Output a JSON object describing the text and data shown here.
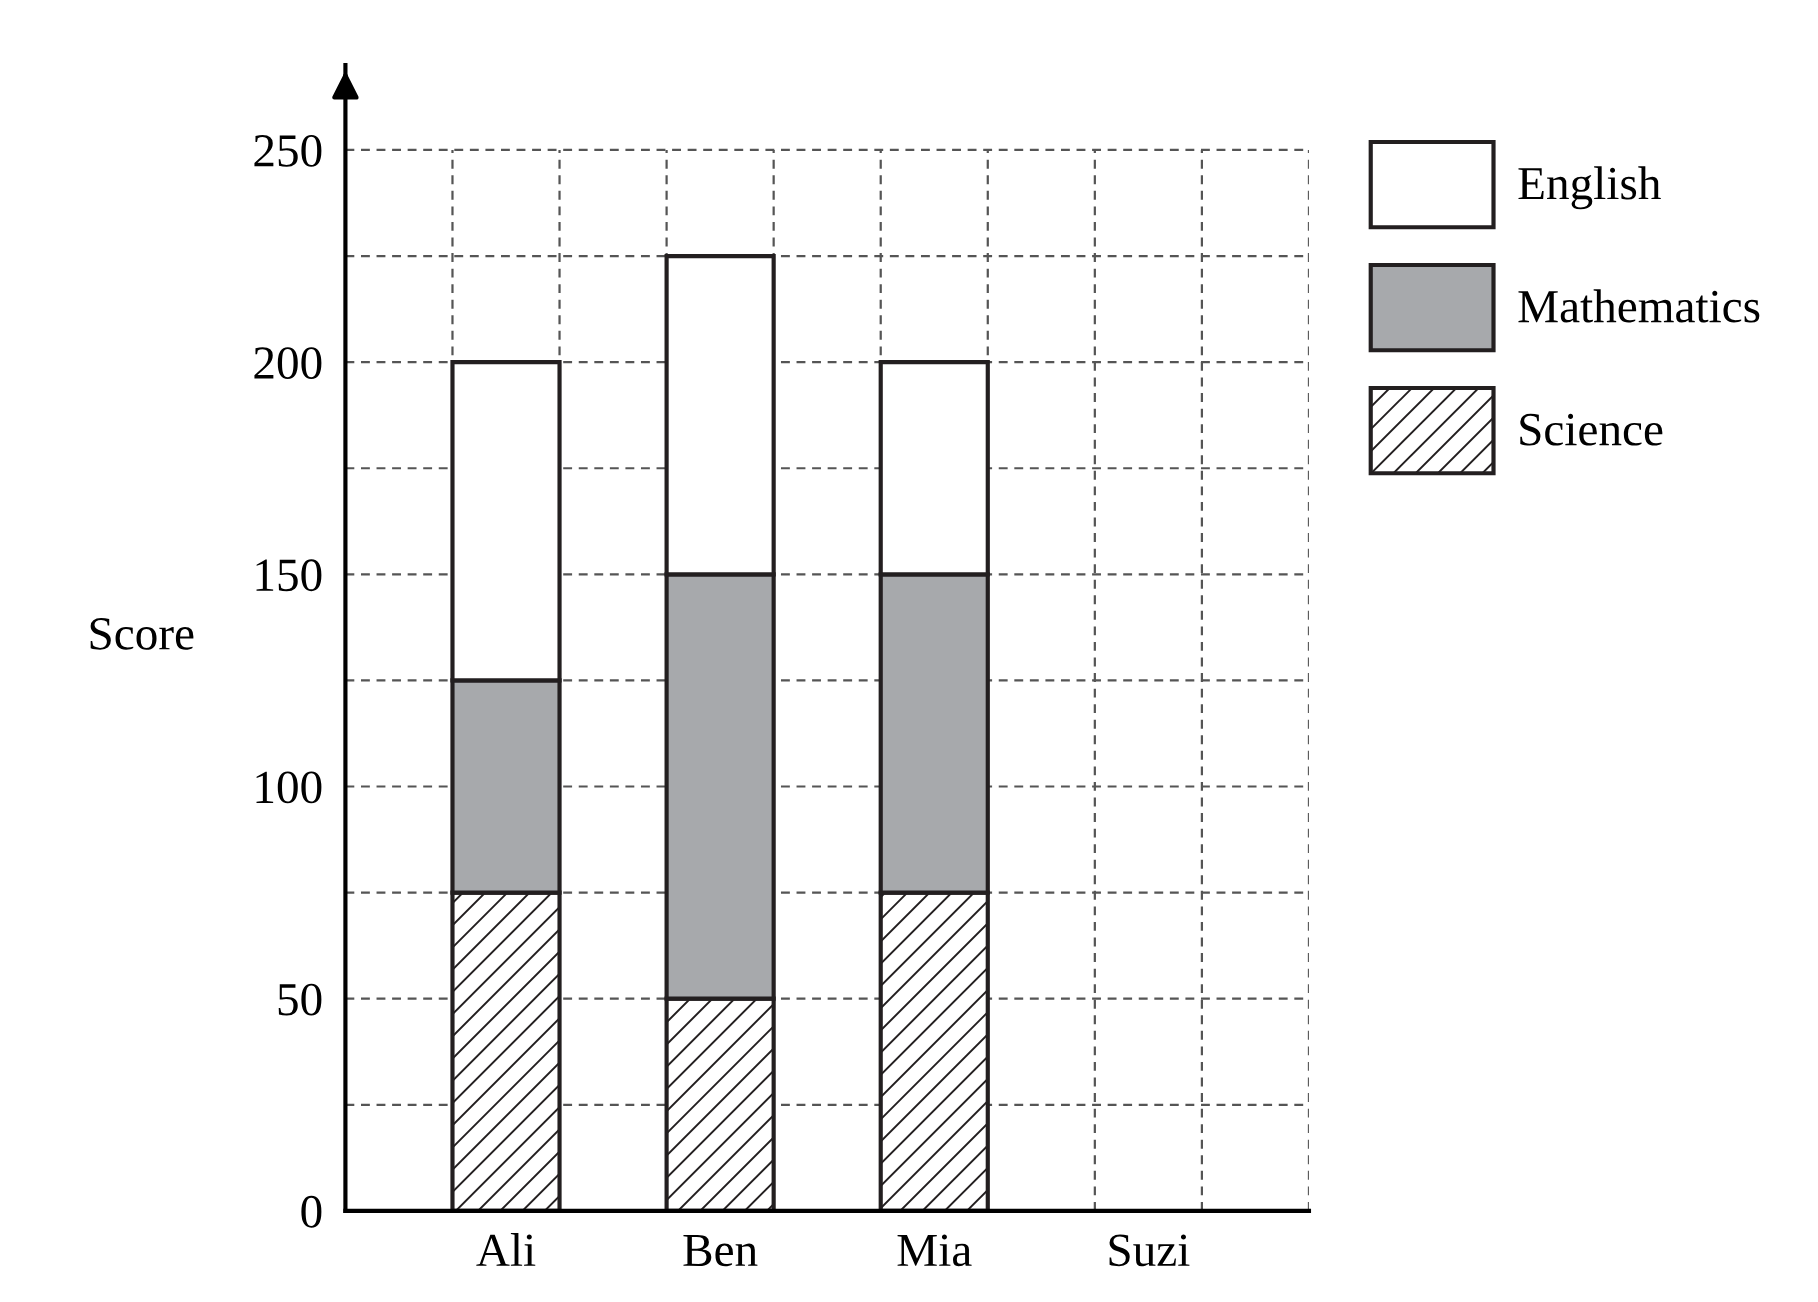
{
  "chart_data": {
    "type": "bar",
    "stacked": true,
    "ylabel": "Score",
    "categories": [
      "Ali",
      "Ben",
      "Mia",
      "Suzi"
    ],
    "series": [
      {
        "name": "Science",
        "color": "#231f20",
        "values": [
          75,
          50,
          75,
          null
        ]
      },
      {
        "name": "Mathematics",
        "color": "#a7a9ac",
        "values": [
          50,
          100,
          75,
          null
        ]
      },
      {
        "name": "English",
        "color": "#ffffff",
        "values": [
          75,
          75,
          50,
          null
        ]
      }
    ],
    "ylim": [
      0,
      270
    ],
    "yticks": [
      0,
      {
        "value": 25,
        "label": null
      },
      50,
      {
        "value": 75,
        "label": null
      },
      100,
      {
        "value": 125,
        "label": null
      },
      150,
      {
        "value": 175,
        "label": null
      },
      200,
      {
        "value": 225,
        "label": null
      },
      250
    ],
    "grid": true,
    "legend": "top right"
  }
}
